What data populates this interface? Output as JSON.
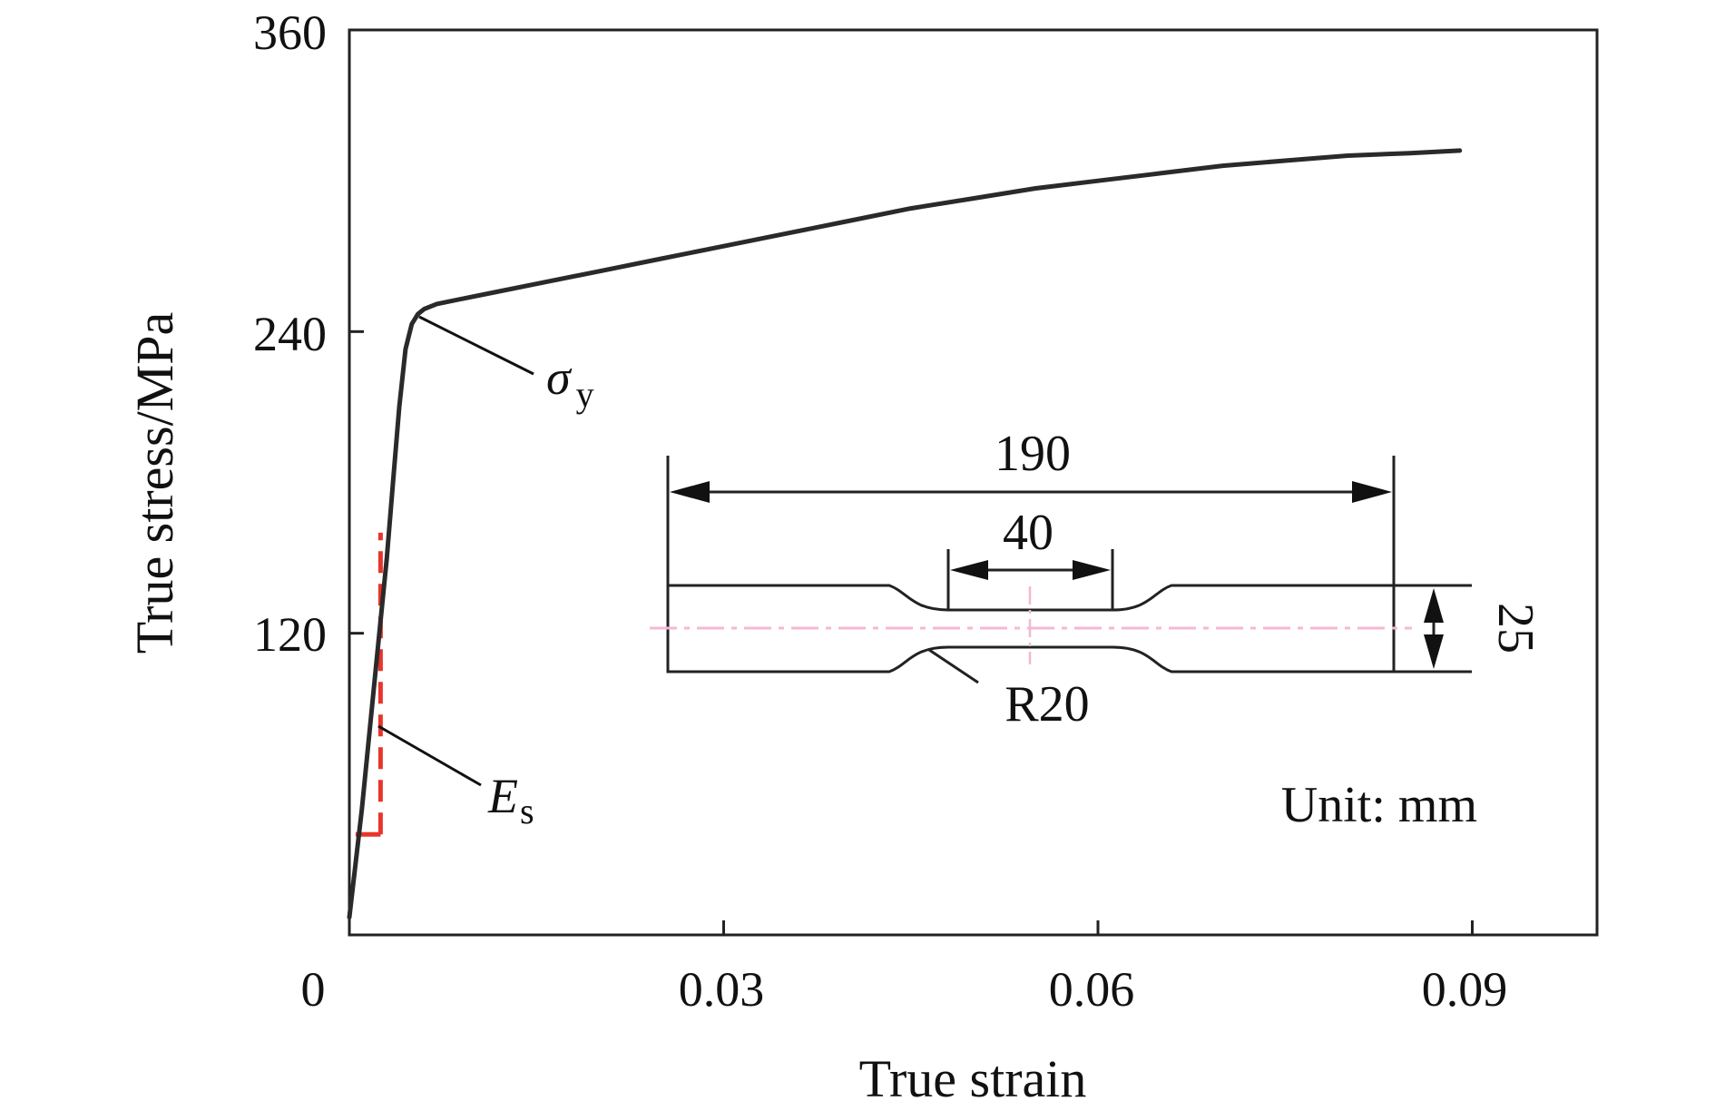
{
  "chart_data": {
    "type": "line",
    "xlabel": "True strain",
    "ylabel": "True stress/MPa",
    "xlim": [
      0,
      0.1
    ],
    "ylim": [
      0,
      360
    ],
    "x_ticks": [
      0,
      0.03,
      0.06,
      0.09
    ],
    "x_tick_labels": [
      "0",
      "0.03",
      "0.06",
      "0.09"
    ],
    "y_ticks": [
      120,
      240,
      360
    ],
    "y_tick_labels": [
      "120",
      "240",
      "360"
    ],
    "grid": false,
    "colors": {
      "curve": "#2a2a2a",
      "modulus_marker": "#e8352b",
      "centerline": "#f4b8d4"
    },
    "series": [
      {
        "x": [
          0.0,
          0.001,
          0.002,
          0.003,
          0.0035,
          0.004,
          0.0045,
          0.005,
          0.0055,
          0.006,
          0.007,
          0.009,
          0.012,
          0.015,
          0.02,
          0.025,
          0.03,
          0.035,
          0.04,
          0.045,
          0.05,
          0.055,
          0.06,
          0.065,
          0.07,
          0.075,
          0.08,
          0.085,
          0.089
        ],
        "y": [
          7,
          50,
          100,
          150,
          180,
          210,
          233,
          243,
          247,
          249,
          251,
          253,
          256,
          259,
          264,
          269,
          274,
          279,
          284,
          289,
          293,
          297,
          300,
          303,
          306,
          308,
          310,
          311,
          312
        ]
      }
    ],
    "annotations": {
      "yield_symbol": "σ",
      "yield_subscript": "y",
      "modulus_symbol": "E",
      "modulus_subscript": "s"
    },
    "modulus_marker": {
      "x0": 0.0005,
      "x1": 0.0025,
      "y0": 40,
      "y1": 160
    },
    "inset": {
      "overall_length": "190",
      "gauge_length": "40",
      "width": "25",
      "radius": "R20",
      "unit_note": "Unit: mm"
    }
  }
}
